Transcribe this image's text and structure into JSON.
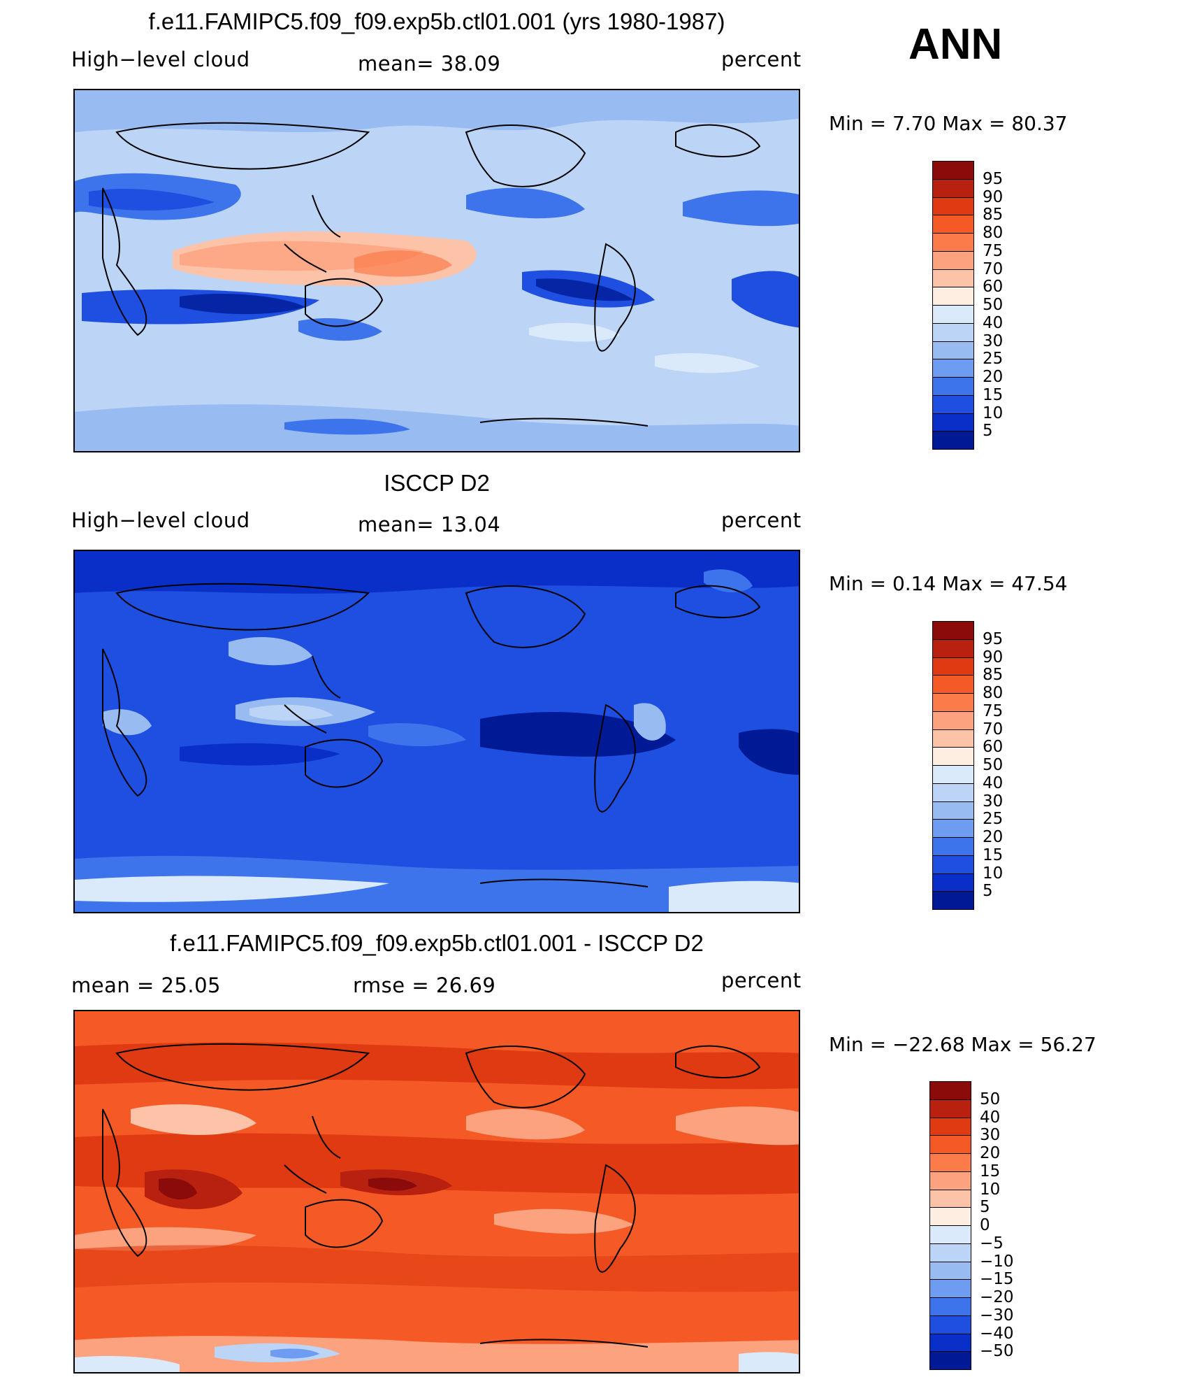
{
  "annual_label": "ANN",
  "panels": [
    {
      "title": "f.e11.FAMIPC5.f09_f09.exp5b.ctl01.001 (yrs 1980-1987)",
      "left_label": "High−level cloud",
      "center_label": "mean=   38.09",
      "right_label": "percent",
      "min_max": "Min =    7.70  Max =    80.37",
      "colorbar_labels": [
        "95",
        "90",
        "85",
        "80",
        "75",
        "70",
        "60",
        "50",
        "40",
        "30",
        "25",
        "20",
        "15",
        "10",
        "5"
      ],
      "colorbar_colors": [
        "#8b0a0a",
        "#b8210f",
        "#e03a12",
        "#f55a26",
        "#fb7c4a",
        "#fca27e",
        "#fcc3a8",
        "#feeee2",
        "#dbeafa",
        "#bcd4f6",
        "#98bbf2",
        "#6e9cf0",
        "#3d74ec",
        "#1f4fe0",
        "#0a2fc8",
        "#001a96"
      ]
    },
    {
      "title": "ISCCP D2",
      "left_label": "High−level cloud",
      "center_label": "mean=   13.04",
      "right_label": "percent",
      "min_max": "Min =    0.14  Max =    47.54",
      "colorbar_labels": [
        "95",
        "90",
        "85",
        "80",
        "75",
        "70",
        "60",
        "50",
        "40",
        "30",
        "25",
        "20",
        "15",
        "10",
        "5"
      ],
      "colorbar_colors": [
        "#8b0a0a",
        "#b8210f",
        "#e03a12",
        "#f55a26",
        "#fb7c4a",
        "#fca27e",
        "#fcc3a8",
        "#feeee2",
        "#dbeafa",
        "#bcd4f6",
        "#98bbf2",
        "#6e9cf0",
        "#3d74ec",
        "#1f4fe0",
        "#0a2fc8",
        "#001a96"
      ]
    },
    {
      "title": "f.e11.FAMIPC5.f09_f09.exp5b.ctl01.001 - ISCCP D2",
      "left_label": "mean =    25.05",
      "center_label": "rmse =    26.69",
      "right_label": "percent",
      "min_max": "Min = −22.68  Max =    56.27",
      "colorbar_labels": [
        "50",
        "40",
        "30",
        "20",
        "15",
        "10",
        "5",
        "0",
        "−5",
        "−10",
        "−15",
        "−20",
        "−30",
        "−40",
        "−50"
      ],
      "colorbar_colors": [
        "#8b0a0a",
        "#b8210f",
        "#e03a12",
        "#f55a26",
        "#fb7c4a",
        "#fca27e",
        "#fcc3a8",
        "#feeee2",
        "#dbeafa",
        "#bcd4f6",
        "#98bbf2",
        "#6e9cf0",
        "#3d74ec",
        "#1f4fe0",
        "#0a2fc8",
        "#001a96"
      ]
    }
  ],
  "chart_data": [
    {
      "type": "heatmap",
      "title": "f.e11.FAMIPC5.f09_f09.exp5b.ctl01.001 (yrs 1980-1987)",
      "variable": "High-level cloud",
      "units": "percent",
      "mean": 38.09,
      "min": 7.7,
      "max": 80.37,
      "contour_levels": [
        5,
        10,
        15,
        20,
        25,
        30,
        40,
        50,
        60,
        70,
        75,
        80,
        85,
        90,
        95
      ]
    },
    {
      "type": "heatmap",
      "title": "ISCCP D2",
      "variable": "High-level cloud",
      "units": "percent",
      "mean": 13.04,
      "min": 0.14,
      "max": 47.54,
      "contour_levels": [
        5,
        10,
        15,
        20,
        25,
        30,
        40,
        50,
        60,
        70,
        75,
        80,
        85,
        90,
        95
      ]
    },
    {
      "type": "heatmap",
      "title": "f.e11.FAMIPC5.f09_f09.exp5b.ctl01.001 - ISCCP D2",
      "units": "percent",
      "mean": 25.05,
      "rmse": 26.69,
      "min": -22.68,
      "max": 56.27,
      "contour_levels": [
        -50,
        -40,
        -30,
        -20,
        -15,
        -10,
        -5,
        0,
        5,
        10,
        15,
        20,
        30,
        40,
        50
      ]
    }
  ]
}
